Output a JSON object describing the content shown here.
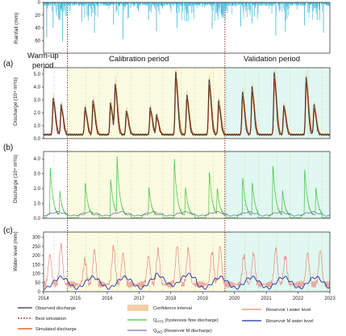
{
  "figure": {
    "panel_labels": [
      "(a)",
      "(b)",
      "(c)"
    ],
    "periods": [
      {
        "line1": "Warm-up",
        "line2": "period",
        "start": 2014.0,
        "end": 2014.75,
        "color": "#ffffff"
      },
      {
        "line1": "Calibration period",
        "line2": "",
        "start": 2014.75,
        "end": 2019.7,
        "color": "#fbfbe1"
      },
      {
        "line1": "Validation period",
        "line2": "",
        "start": 2019.7,
        "end": 2023.0,
        "color": "#e1f7f1"
      }
    ],
    "x_ticks": [
      "2014",
      "2015",
      "2016",
      "2017",
      "2018",
      "2019",
      "2020",
      "2021",
      "2022",
      "2023"
    ]
  },
  "chart_data": [
    {
      "type": "bar",
      "ylabel": "Rainfall (mm)",
      "ylim": [
        0,
        80
      ],
      "inverted": true,
      "yticks": [
        "0",
        "20",
        "40",
        "60"
      ],
      "xlim": [
        2014,
        2023
      ],
      "series": [
        {
          "values_peaks": [
            [
              2014.1,
              55
            ],
            [
              2014.3,
              40
            ],
            [
              2014.6,
              62
            ],
            [
              2015.2,
              30
            ],
            [
              2015.6,
              48
            ],
            [
              2016.2,
              35
            ],
            [
              2016.5,
              58
            ],
            [
              2017.3,
              28
            ],
            [
              2017.55,
              45
            ],
            [
              2018.2,
              40
            ],
            [
              2018.5,
              30
            ],
            [
              2019.3,
              42
            ],
            [
              2019.6,
              20
            ],
            [
              2020.2,
              38
            ],
            [
              2020.55,
              33
            ],
            [
              2021.3,
              52
            ],
            [
              2021.6,
              46
            ],
            [
              2022.2,
              36
            ],
            [
              2022.6,
              28
            ],
            [
              2022.8,
              48
            ]
          ],
          "color": "#3bb7d8"
        }
      ]
    },
    {
      "type": "line",
      "ylabel": "Discharge (10⁴ m³/s)",
      "ylim": [
        0,
        5.5
      ],
      "yticks": [
        "0.0",
        "1.0",
        "2.0",
        "3.0",
        "4.0",
        "5.0"
      ],
      "xlim": [
        2014,
        2023
      ],
      "floods": [
        [
          2014.3,
          3.2
        ],
        [
          2014.55,
          2.6
        ],
        [
          2015.3,
          2.4
        ],
        [
          2015.55,
          3.0
        ],
        [
          2016.1,
          2.8
        ],
        [
          2016.25,
          4.2
        ],
        [
          2016.6,
          2.2
        ],
        [
          2017.35,
          2.4
        ],
        [
          2017.55,
          1.8
        ],
        [
          2018.15,
          5.2
        ],
        [
          2018.5,
          3.4
        ],
        [
          2019.2,
          4.6
        ],
        [
          2019.5,
          2.9
        ],
        [
          2020.25,
          3.6
        ],
        [
          2020.55,
          4.0
        ],
        [
          2021.25,
          5.1
        ],
        [
          2021.55,
          2.6
        ],
        [
          2022.25,
          4.8
        ],
        [
          2022.5,
          2.6
        ]
      ],
      "base": 0.3,
      "series": [
        {
          "name": "Observed discharge",
          "color": "#333333"
        },
        {
          "name": "Best simulation",
          "color": "#7a2a1a"
        },
        {
          "name": "Simulated discharge",
          "color": "#e2682a"
        },
        {
          "name": "Confidence interval",
          "color": "#f0c08c"
        }
      ]
    },
    {
      "type": "line",
      "ylabel": "Discharge (10⁴ m³/s)",
      "ylim": [
        0,
        4.5
      ],
      "yticks": [
        "0.0",
        "1.0",
        "2.0",
        "3.0",
        "4.0"
      ],
      "xlim": [
        2014,
        2023
      ],
      "hysteresis_peaks": [
        [
          2014.2,
          3.8
        ],
        [
          2014.5,
          1.8
        ],
        [
          2015.3,
          2.7
        ],
        [
          2016.1,
          2.9
        ],
        [
          2016.3,
          4.2
        ],
        [
          2017.3,
          2.3
        ],
        [
          2018.1,
          4.4
        ],
        [
          2018.45,
          2.2
        ],
        [
          2019.2,
          3.6
        ],
        [
          2019.45,
          2.0
        ],
        [
          2020.25,
          3.1
        ],
        [
          2020.55,
          2.6
        ],
        [
          2021.2,
          4.0
        ],
        [
          2021.5,
          1.9
        ],
        [
          2022.2,
          3.7
        ],
        [
          2022.55,
          2.2
        ]
      ],
      "series": [
        {
          "name": "Q_HYS (hysteresis flow discharge)",
          "color": "#3ec23e"
        },
        {
          "name": "Q_WO (Reservoir M discharge)",
          "color": "#7a6fb8"
        }
      ]
    },
    {
      "type": "line",
      "ylabel": "Water level (mm)",
      "ylim": [
        0,
        330
      ],
      "yticks": [
        "0",
        "50",
        "100",
        "150",
        "200",
        "250",
        "300"
      ],
      "xlim": [
        2014,
        2023
      ],
      "reservoir_i_peaks": [
        [
          2014.2,
          205
        ],
        [
          2014.55,
          260
        ],
        [
          2015.3,
          175
        ],
        [
          2015.6,
          230
        ],
        [
          2016.2,
          250
        ],
        [
          2016.5,
          210
        ],
        [
          2017.3,
          195
        ],
        [
          2017.6,
          230
        ],
        [
          2018.2,
          255
        ],
        [
          2018.55,
          235
        ],
        [
          2019.3,
          220
        ],
        [
          2019.55,
          250
        ],
        [
          2020.3,
          200
        ],
        [
          2020.6,
          215
        ],
        [
          2021.3,
          240
        ],
        [
          2021.6,
          195
        ],
        [
          2022.3,
          215
        ],
        [
          2022.7,
          230
        ]
      ],
      "series": [
        {
          "name": "Reservoir I water level",
          "color": "#e8887a"
        },
        {
          "name": "Reservoir M water level",
          "color": "#1a2fa8"
        }
      ]
    }
  ],
  "legend": {
    "observed": "Observed discharge",
    "best": "Best simulation",
    "simulated": "Simulated discharge",
    "ci": "Confidence interval",
    "qhys_main": "Q",
    "qhys_sub": "HYS",
    "qhys_rest": " (hysteresis flow discharge)",
    "qwo_main": "Q",
    "qwo_sub": "WO",
    "qwo_rest": " (Reservoir M discharge)",
    "res_i": "Reservoir I water level",
    "res_m": "Reservoir M water level"
  }
}
